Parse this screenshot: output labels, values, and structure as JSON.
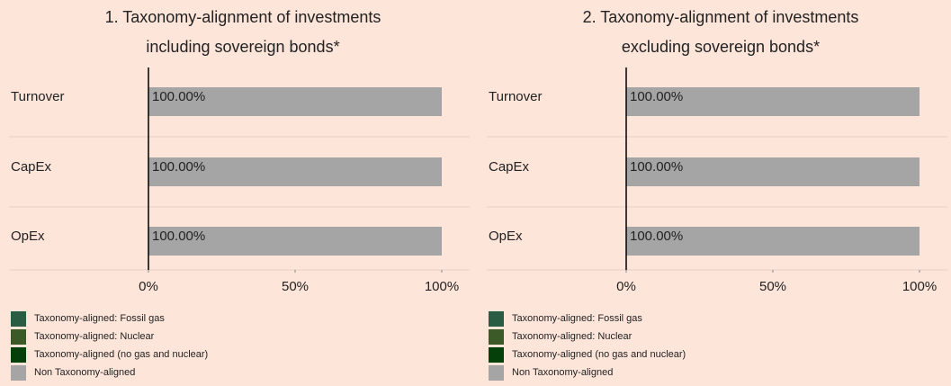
{
  "chart_data": [
    {
      "type": "barh_stacked",
      "title": [
        "1. Taxonomy-alignment of investments",
        "including sovereign bonds*"
      ],
      "categories": [
        "Turnover",
        "CapEx",
        "OpEx"
      ],
      "series": [
        {
          "name": "Taxonomy-aligned: Fossil gas",
          "color": "#2a5c43",
          "values": [
            0,
            0,
            0
          ]
        },
        {
          "name": "Taxonomy-aligned: Nuclear",
          "color": "#3b5a27",
          "values": [
            0,
            0,
            0
          ]
        },
        {
          "name": "Taxonomy-aligned (no gas and nuclear)",
          "color": "#053f0a",
          "values": [
            0,
            0,
            0
          ]
        },
        {
          "name": "Non Taxonomy-aligned",
          "color": "#a5a5a5",
          "values": [
            100,
            100,
            100
          ],
          "value_labels": [
            "100.00%",
            "100.00%",
            "100.00%"
          ]
        }
      ],
      "xlim": [
        0,
        100
      ],
      "xticks": [
        {
          "value": 0,
          "label": "0%"
        },
        {
          "value": 50,
          "label": "50%"
        },
        {
          "value": 100,
          "label": "100%"
        }
      ]
    },
    {
      "type": "barh_stacked",
      "title": [
        "2. Taxonomy-alignment of investments",
        "excluding sovereign bonds*"
      ],
      "categories": [
        "Turnover",
        "CapEx",
        "OpEx"
      ],
      "series": [
        {
          "name": "Taxonomy-aligned: Fossil gas",
          "color": "#2a5c43",
          "values": [
            0,
            0,
            0
          ]
        },
        {
          "name": "Taxonomy-aligned: Nuclear",
          "color": "#3b5a27",
          "values": [
            0,
            0,
            0
          ]
        },
        {
          "name": "Taxonomy-aligned (no gas and nuclear)",
          "color": "#053f0a",
          "values": [
            0,
            0,
            0
          ]
        },
        {
          "name": "Non Taxonomy-aligned",
          "color": "#a5a5a5",
          "values": [
            100,
            100,
            100
          ],
          "value_labels": [
            "100.00%",
            "100.00%",
            "100.00%"
          ]
        }
      ],
      "xlim": [
        0,
        100
      ],
      "xticks": [
        {
          "value": 0,
          "label": "0%"
        },
        {
          "value": 50,
          "label": "50%"
        },
        {
          "value": 100,
          "label": "100%"
        }
      ]
    }
  ]
}
